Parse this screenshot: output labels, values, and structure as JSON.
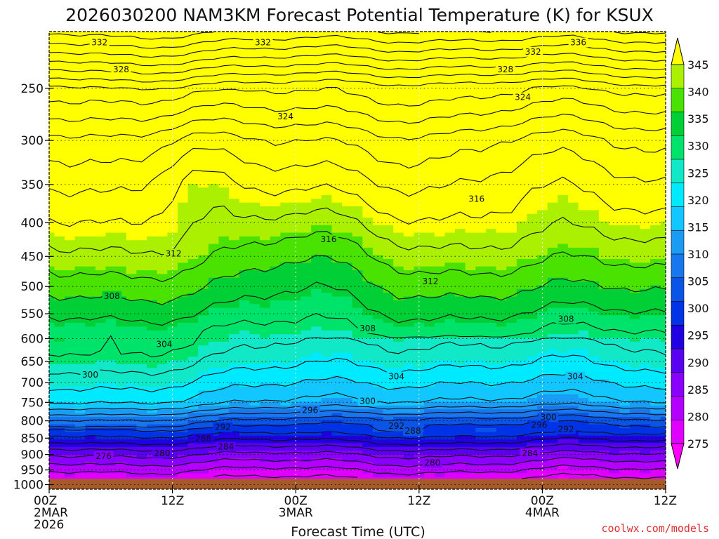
{
  "chart_data": {
    "type": "contour",
    "title": "2026030200 NAM3KM Forecast Potential Temperature (K) for KSUX",
    "xlabel": "Forecast Time (UTC)",
    "ylabel": "",
    "credit": "coolwx.com/models",
    "x_ticks": [
      {
        "hours": 0,
        "lines": [
          "00Z",
          "2MAR",
          "2026"
        ]
      },
      {
        "hours": 12,
        "lines": [
          "12Z"
        ]
      },
      {
        "hours": 24,
        "lines": [
          "00Z",
          "3MAR"
        ]
      },
      {
        "hours": 36,
        "lines": [
          "12Z"
        ]
      },
      {
        "hours": 48,
        "lines": [
          "00Z",
          "4MAR"
        ]
      },
      {
        "hours": 60,
        "lines": [
          "12Z"
        ]
      }
    ],
    "xlim": [
      0,
      60
    ],
    "y_ticks": [
      250,
      300,
      350,
      400,
      450,
      500,
      550,
      600,
      650,
      700,
      750,
      800,
      850,
      900,
      950,
      1000
    ],
    "y_tick_labels": [
      "250",
      "300",
      "350",
      "400",
      "450",
      "500",
      "550",
      "600",
      "650",
      "700",
      "750",
      "800",
      "850",
      "900",
      "950",
      "1000"
    ],
    "ylim_hPa": [
      1016,
      205
    ],
    "ground_pressure_hPa": 980,
    "ground_color": "#a65a2a",
    "colorbar": {
      "levels": [
        275,
        280,
        285,
        290,
        295,
        300,
        305,
        310,
        315,
        320,
        325,
        330,
        335,
        340,
        345
      ],
      "labels": [
        "275",
        "280",
        "285",
        "290",
        "295",
        "300",
        "305",
        "310",
        "315",
        "320",
        "325",
        "330",
        "335",
        "340",
        "345"
      ],
      "colors": [
        "#ff00ff",
        "#e000ff",
        "#b300ff",
        "#8a00ff",
        "#5a00f0",
        "#2000e0",
        "#0033e6",
        "#0a55e8",
        "#1877ee",
        "#1a9bf4",
        "#12c6ff",
        "#00eaff",
        "#11e8c8",
        "#00e36a",
        "#00d036",
        "#4ae200",
        "#aaf000",
        "#ffff00"
      ]
    },
    "contour_labels": [
      {
        "text": "332",
        "t": 4.9,
        "p": 213
      },
      {
        "text": "332",
        "t": 20.8,
        "p": 213
      },
      {
        "text": "336",
        "t": 51.5,
        "p": 213
      },
      {
        "text": "332",
        "t": 47.1,
        "p": 220
      },
      {
        "text": "328",
        "t": 7.0,
        "p": 234
      },
      {
        "text": "328",
        "t": 44.4,
        "p": 234
      },
      {
        "text": "324",
        "t": 46.1,
        "p": 258
      },
      {
        "text": "324",
        "t": 23.0,
        "p": 276
      },
      {
        "text": "316",
        "t": 41.6,
        "p": 368
      },
      {
        "text": "316",
        "t": 27.2,
        "p": 424
      },
      {
        "text": "312",
        "t": 12.1,
        "p": 446
      },
      {
        "text": "312",
        "t": 37.1,
        "p": 491
      },
      {
        "text": "308",
        "t": 6.1,
        "p": 517
      },
      {
        "text": "308",
        "t": 31.0,
        "p": 579
      },
      {
        "text": "308",
        "t": 50.3,
        "p": 560
      },
      {
        "text": "304",
        "t": 11.2,
        "p": 612
      },
      {
        "text": "304",
        "t": 33.8,
        "p": 685
      },
      {
        "text": "304",
        "t": 51.2,
        "p": 685
      },
      {
        "text": "300",
        "t": 4.0,
        "p": 681
      },
      {
        "text": "300",
        "t": 31.0,
        "p": 747
      },
      {
        "text": "300",
        "t": 48.6,
        "p": 790
      },
      {
        "text": "296",
        "t": 25.4,
        "p": 771
      },
      {
        "text": "296",
        "t": 47.7,
        "p": 812
      },
      {
        "text": "292",
        "t": 16.9,
        "p": 818
      },
      {
        "text": "292",
        "t": 33.8,
        "p": 815
      },
      {
        "text": "292",
        "t": 50.3,
        "p": 824
      },
      {
        "text": "288",
        "t": 15.0,
        "p": 851
      },
      {
        "text": "288",
        "t": 35.4,
        "p": 829
      },
      {
        "text": "284",
        "t": 17.2,
        "p": 876
      },
      {
        "text": "284",
        "t": 46.8,
        "p": 896
      },
      {
        "text": "280",
        "t": 11.0,
        "p": 896
      },
      {
        "text": "280",
        "t": 37.3,
        "p": 927
      },
      {
        "text": "276",
        "t": 5.3,
        "p": 905
      }
    ]
  }
}
